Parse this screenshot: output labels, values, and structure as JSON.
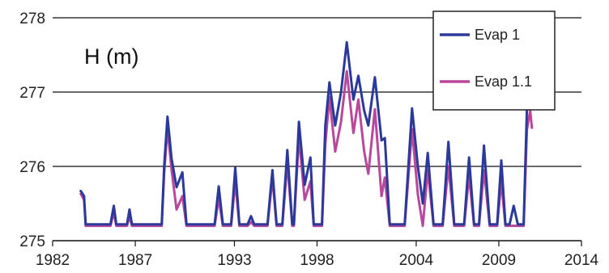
{
  "chart_data": {
    "type": "line",
    "annotation": "H (m)",
    "xlim": [
      1982,
      2014
    ],
    "ylim": [
      275,
      278
    ],
    "x_ticks": [
      1982,
      1987,
      1993,
      1998,
      2004,
      2009,
      2014
    ],
    "y_ticks": [
      275,
      276,
      277,
      278
    ],
    "grid": "horizontal",
    "legend_position": "top-right",
    "series": [
      {
        "name": "Evap 1",
        "color": "#2b3a9a",
        "points": [
          [
            1983.7,
            275.67
          ],
          [
            1983.9,
            275.6
          ],
          [
            1984.0,
            275.22
          ],
          [
            1985.5,
            275.22
          ],
          [
            1985.7,
            275.47
          ],
          [
            1985.85,
            275.22
          ],
          [
            1986.5,
            275.22
          ],
          [
            1986.65,
            275.42
          ],
          [
            1986.8,
            275.22
          ],
          [
            1988.6,
            275.22
          ],
          [
            1988.75,
            276.0
          ],
          [
            1988.95,
            276.67
          ],
          [
            1989.2,
            276.1
          ],
          [
            1989.5,
            275.72
          ],
          [
            1989.85,
            275.92
          ],
          [
            1990.1,
            275.22
          ],
          [
            1991.8,
            275.22
          ],
          [
            1992.05,
            275.73
          ],
          [
            1992.3,
            275.22
          ],
          [
            1992.8,
            275.22
          ],
          [
            1993.05,
            275.98
          ],
          [
            1993.3,
            275.22
          ],
          [
            1993.8,
            275.22
          ],
          [
            1994.0,
            275.33
          ],
          [
            1994.2,
            275.22
          ],
          [
            1995.0,
            275.22
          ],
          [
            1995.3,
            275.95
          ],
          [
            1995.55,
            275.22
          ],
          [
            1995.9,
            275.22
          ],
          [
            1996.2,
            276.22
          ],
          [
            1996.5,
            275.22
          ],
          [
            1996.6,
            275.22
          ],
          [
            1996.9,
            276.6
          ],
          [
            1997.25,
            275.75
          ],
          [
            1997.6,
            276.12
          ],
          [
            1997.8,
            275.22
          ],
          [
            1998.3,
            275.22
          ],
          [
            1998.5,
            276.55
          ],
          [
            1998.75,
            277.13
          ],
          [
            1999.1,
            276.55
          ],
          [
            1999.45,
            277.0
          ],
          [
            1999.8,
            277.67
          ],
          [
            2000.2,
            276.9
          ],
          [
            2000.5,
            277.22
          ],
          [
            2000.85,
            276.75
          ],
          [
            2001.1,
            276.55
          ],
          [
            2001.5,
            277.2
          ],
          [
            2001.9,
            276.35
          ],
          [
            2002.1,
            276.38
          ],
          [
            2002.4,
            275.22
          ],
          [
            2003.3,
            275.22
          ],
          [
            2003.75,
            276.78
          ],
          [
            2004.1,
            276.0
          ],
          [
            2004.4,
            275.5
          ],
          [
            2004.7,
            276.18
          ],
          [
            2005.05,
            275.22
          ],
          [
            2005.6,
            275.22
          ],
          [
            2005.95,
            276.33
          ],
          [
            2006.3,
            275.22
          ],
          [
            2006.9,
            275.22
          ],
          [
            2007.2,
            276.12
          ],
          [
            2007.5,
            275.22
          ],
          [
            2007.8,
            275.22
          ],
          [
            2008.1,
            276.28
          ],
          [
            2008.45,
            275.22
          ],
          [
            2008.9,
            275.22
          ],
          [
            2009.15,
            276.08
          ],
          [
            2009.4,
            275.22
          ],
          [
            2009.65,
            275.22
          ],
          [
            2009.9,
            275.47
          ],
          [
            2010.15,
            275.22
          ],
          [
            2010.5,
            275.22
          ],
          [
            2010.7,
            276.8
          ],
          [
            2010.9,
            276.95
          ],
          [
            2011.0,
            276.88
          ]
        ]
      },
      {
        "name": "Evap 1.1",
        "color": "#b9479b",
        "points": [
          [
            1983.7,
            275.63
          ],
          [
            1983.9,
            275.55
          ],
          [
            1984.0,
            275.2
          ],
          [
            1985.5,
            275.2
          ],
          [
            1985.7,
            275.38
          ],
          [
            1985.85,
            275.2
          ],
          [
            1986.5,
            275.2
          ],
          [
            1986.65,
            275.33
          ],
          [
            1986.8,
            275.2
          ],
          [
            1988.6,
            275.2
          ],
          [
            1988.75,
            275.9
          ],
          [
            1988.95,
            276.52
          ],
          [
            1989.2,
            275.95
          ],
          [
            1989.5,
            275.42
          ],
          [
            1989.85,
            275.6
          ],
          [
            1990.1,
            275.2
          ],
          [
            1991.8,
            275.2
          ],
          [
            1992.05,
            275.57
          ],
          [
            1992.3,
            275.2
          ],
          [
            1992.8,
            275.2
          ],
          [
            1993.05,
            275.8
          ],
          [
            1993.3,
            275.2
          ],
          [
            1993.8,
            275.2
          ],
          [
            1994.0,
            275.25
          ],
          [
            1994.2,
            275.2
          ],
          [
            1995.0,
            275.2
          ],
          [
            1995.3,
            275.85
          ],
          [
            1995.55,
            275.2
          ],
          [
            1995.9,
            275.2
          ],
          [
            1996.2,
            276.05
          ],
          [
            1996.5,
            275.2
          ],
          [
            1996.6,
            275.2
          ],
          [
            1996.9,
            276.4
          ],
          [
            1997.25,
            275.55
          ],
          [
            1997.6,
            275.8
          ],
          [
            1997.8,
            275.2
          ],
          [
            1998.3,
            275.2
          ],
          [
            1998.5,
            276.3
          ],
          [
            1998.75,
            276.93
          ],
          [
            1999.1,
            276.2
          ],
          [
            1999.45,
            276.6
          ],
          [
            1999.8,
            277.28
          ],
          [
            2000.2,
            276.45
          ],
          [
            2000.5,
            276.9
          ],
          [
            2000.85,
            276.2
          ],
          [
            2001.1,
            275.9
          ],
          [
            2001.5,
            276.77
          ],
          [
            2001.9,
            275.6
          ],
          [
            2002.1,
            275.85
          ],
          [
            2002.4,
            275.2
          ],
          [
            2003.3,
            275.2
          ],
          [
            2003.75,
            276.5
          ],
          [
            2004.1,
            275.62
          ],
          [
            2004.4,
            275.2
          ],
          [
            2004.7,
            275.95
          ],
          [
            2005.05,
            275.2
          ],
          [
            2005.6,
            275.2
          ],
          [
            2005.95,
            276.0
          ],
          [
            2006.3,
            275.2
          ],
          [
            2006.9,
            275.2
          ],
          [
            2007.2,
            275.88
          ],
          [
            2007.5,
            275.2
          ],
          [
            2007.8,
            275.2
          ],
          [
            2008.1,
            275.95
          ],
          [
            2008.45,
            275.2
          ],
          [
            2008.9,
            275.2
          ],
          [
            2009.15,
            275.8
          ],
          [
            2009.4,
            275.2
          ],
          [
            2010.5,
            275.2
          ],
          [
            2010.7,
            276.5
          ],
          [
            2010.9,
            276.75
          ],
          [
            2011.0,
            276.52
          ]
        ]
      }
    ]
  }
}
